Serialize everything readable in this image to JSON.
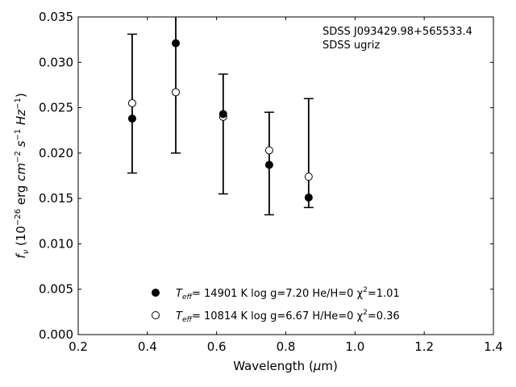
{
  "chart_data": {
    "type": "scatter",
    "title": "",
    "xlabel": "Wavelength (μm)",
    "ylabel": "f_ν (10^−26 erg cm^−2 s^−1 Hz^−1)",
    "xlim": [
      0.2,
      1.4
    ],
    "ylim": [
      0.0,
      0.035
    ],
    "x_ticks": [
      "0.2",
      "0.4",
      "0.6",
      "0.8",
      "1.0",
      "1.2",
      "1.4"
    ],
    "y_ticks": [
      "0.000",
      "0.005",
      "0.010",
      "0.015",
      "0.020",
      "0.025",
      "0.030",
      "0.035"
    ],
    "grid": false,
    "legend_position": "bottom-center",
    "annotation": [
      "SDSS J093429.98+565533.4",
      "SDSS ugriz"
    ],
    "observed": {
      "x": [
        0.356,
        0.482,
        0.619,
        0.752,
        0.866
      ],
      "y": [
        0.0255,
        0.0267,
        0.024,
        0.0203,
        0.0174
      ],
      "err_low": [
        0.0178,
        0.02,
        0.0155,
        0.0132,
        0.014
      ],
      "err_high": [
        0.0331,
        0.0352,
        0.0287,
        0.0245,
        0.026
      ]
    },
    "series": [
      {
        "marker": "filled-circle",
        "legend_parts": [
          "T",
          "eff",
          "= 14901 K  log g=7.20  He/H=0  χ",
          "2",
          "=1.01"
        ],
        "x": [
          0.356,
          0.482,
          0.619,
          0.752,
          0.866
        ],
        "y": [
          0.0238,
          0.0321,
          0.0243,
          0.0187,
          0.0151
        ]
      },
      {
        "marker": "open-circle",
        "legend_parts": [
          "T",
          "eff",
          "= 10814 K  log g=6.67  H/He=0  χ",
          "2",
          "=0.36"
        ],
        "x": [
          0.356,
          0.482,
          0.619,
          0.752,
          0.866
        ],
        "y": [
          0.0255,
          0.0267,
          0.024,
          0.0203,
          0.0174
        ]
      }
    ]
  }
}
